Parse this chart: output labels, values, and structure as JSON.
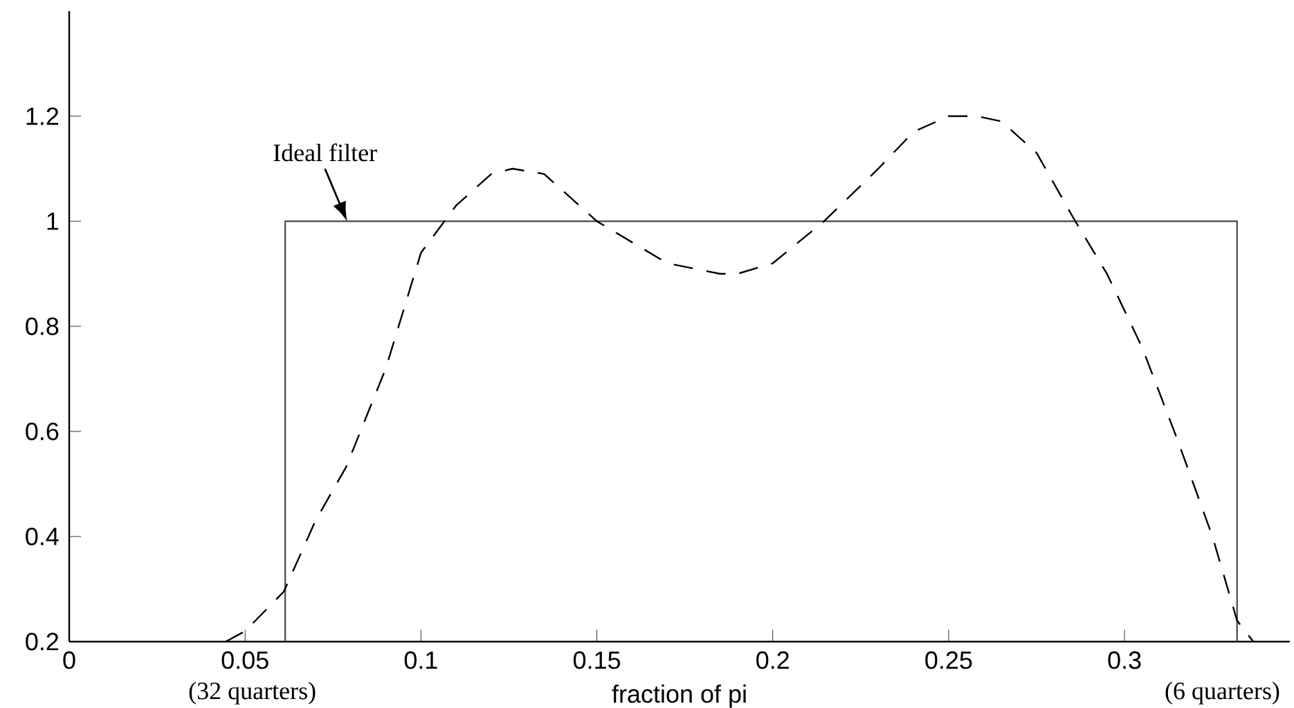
{
  "chart_data": {
    "type": "line",
    "xlabel": "fraction of pi",
    "xlim": [
      0,
      0.347
    ],
    "ylim": [
      0.2,
      1.4
    ],
    "xticks": [
      0,
      0.05,
      0.1,
      0.15,
      0.2,
      0.25,
      0.3
    ],
    "yticks": [
      0.2,
      0.4,
      0.6,
      0.8,
      1,
      1.2
    ],
    "series": [
      {
        "color": "#555555",
        "line_style": "solid",
        "x": [
          0.0614,
          0.0614,
          0.332,
          0.332
        ],
        "values": [
          0.2,
          1,
          1,
          0.2
        ]
      },
      {
        "color": "#000000",
        "line_style": "dashed",
        "x": [
          0.0445,
          0.05,
          0.061,
          0.07,
          0.0787,
          0.09,
          0.1,
          0.11,
          0.12,
          0.126,
          0.135,
          0.14,
          0.15,
          0.16,
          0.17,
          0.185,
          0.19,
          0.2,
          0.2146,
          0.23,
          0.24,
          0.25,
          0.258,
          0.265,
          0.275,
          0.286,
          0.295,
          0.305,
          0.315,
          0.325,
          0.332,
          0.3366
        ],
        "values": [
          0.2,
          0.22,
          0.295,
          0.43,
          0.532,
          0.72,
          0.94,
          1.03,
          1.09,
          1.1,
          1.09,
          1.06,
          1.0,
          0.96,
          0.92,
          0.9,
          0.9,
          0.92,
          1.0,
          1.1,
          1.17,
          1.2,
          1.2,
          1.19,
          1.13,
          1.0,
          0.9,
          0.76,
          0.585,
          0.4,
          0.24,
          0.2
        ]
      }
    ],
    "annotations": [
      {
        "text": "Ideal filter",
        "x": 0.079,
        "y": 1.0
      },
      "(32 quarters)",
      "(6 quarters)"
    ]
  }
}
